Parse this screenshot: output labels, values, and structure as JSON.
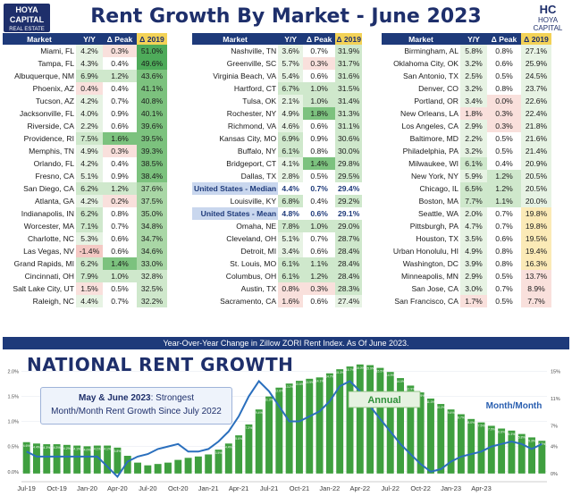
{
  "header": {
    "title": "Rent Growth By Market - June 2023",
    "logo_left_line1": "HOYA CAPITAL",
    "logo_left_line2": "REAL ESTATE",
    "logo_right_line1": "HC",
    "logo_right_line2": "HOYA CAPITAL"
  },
  "table_headers": [
    "Market",
    "Y/Y",
    "Δ Peak",
    "Δ 2019"
  ],
  "tables": [
    [
      [
        "Miami, FL",
        "4.2%",
        "0.3%",
        "51.0%"
      ],
      [
        "Tampa, FL",
        "4.3%",
        "0.4%",
        "49.6%"
      ],
      [
        "Albuquerque, NM",
        "6.9%",
        "1.2%",
        "43.6%"
      ],
      [
        "Phoenix, AZ",
        "0.4%",
        "0.4%",
        "41.1%"
      ],
      [
        "Tucson, AZ",
        "4.2%",
        "0.7%",
        "40.8%"
      ],
      [
        "Jacksonville, FL",
        "4.0%",
        "0.9%",
        "40.1%"
      ],
      [
        "Riverside, CA",
        "2.2%",
        "0.6%",
        "39.6%"
      ],
      [
        "Providence, RI",
        "7.5%",
        "1.6%",
        "39.5%"
      ],
      [
        "Memphis, TN",
        "4.9%",
        "0.3%",
        "39.3%"
      ],
      [
        "Orlando, FL",
        "4.2%",
        "0.4%",
        "38.5%"
      ],
      [
        "Fresno, CA",
        "5.1%",
        "0.9%",
        "38.4%"
      ],
      [
        "San Diego, CA",
        "6.2%",
        "1.2%",
        "37.6%"
      ],
      [
        "Atlanta, GA",
        "4.2%",
        "0.2%",
        "37.5%"
      ],
      [
        "Indianapolis, IN",
        "6.2%",
        "0.8%",
        "35.0%"
      ],
      [
        "Worcester, MA",
        "7.1%",
        "0.7%",
        "34.8%"
      ],
      [
        "Charlotte, NC",
        "5.3%",
        "0.6%",
        "34.7%"
      ],
      [
        "Las Vegas, NV",
        "-1.4%",
        "0.6%",
        "34.6%"
      ],
      [
        "Grand Rapids, MI",
        "6.2%",
        "1.4%",
        "33.0%"
      ],
      [
        "Cincinnati, OH",
        "7.9%",
        "1.0%",
        "32.8%"
      ],
      [
        "Salt Lake City, UT",
        "1.5%",
        "0.5%",
        "32.5%"
      ],
      [
        "Raleigh, NC",
        "4.4%",
        "0.7%",
        "32.2%"
      ]
    ],
    [
      [
        "Nashville, TN",
        "3.6%",
        "0.7%",
        "31.9%"
      ],
      [
        "Greenville, SC",
        "5.7%",
        "0.3%",
        "31.7%"
      ],
      [
        "Virginia Beach, VA",
        "5.4%",
        "0.6%",
        "31.6%"
      ],
      [
        "Hartford, CT",
        "6.7%",
        "1.0%",
        "31.5%"
      ],
      [
        "Tulsa, OK",
        "2.1%",
        "1.0%",
        "31.4%"
      ],
      [
        "Rochester, NY",
        "4.9%",
        "1.8%",
        "31.3%"
      ],
      [
        "Richmond, VA",
        "4.6%",
        "0.6%",
        "31.1%"
      ],
      [
        "Kansas City, MO",
        "6.9%",
        "0.9%",
        "30.6%"
      ],
      [
        "Buffalo, NY",
        "6.1%",
        "0.8%",
        "30.0%"
      ],
      [
        "Bridgeport, CT",
        "4.1%",
        "1.4%",
        "29.8%"
      ],
      [
        "Dallas, TX",
        "2.8%",
        "0.5%",
        "29.5%"
      ],
      [
        "United States - Median",
        "4.4%",
        "0.7%",
        "29.4%"
      ],
      [
        "Louisville, KY",
        "6.8%",
        "0.4%",
        "29.2%"
      ],
      [
        "United States - Mean",
        "4.8%",
        "0.6%",
        "29.1%"
      ],
      [
        "Omaha, NE",
        "7.8%",
        "1.0%",
        "29.0%"
      ],
      [
        "Cleveland, OH",
        "5.1%",
        "0.7%",
        "28.7%"
      ],
      [
        "Detroit, MI",
        "3.4%",
        "0.6%",
        "28.4%"
      ],
      [
        "St. Louis, MO",
        "6.1%",
        "1.1%",
        "28.4%"
      ],
      [
        "Columbus, OH",
        "6.1%",
        "1.2%",
        "28.4%"
      ],
      [
        "Austin, TX",
        "0.8%",
        "0.3%",
        "28.3%"
      ],
      [
        "Sacramento, CA",
        "1.6%",
        "0.6%",
        "27.4%"
      ]
    ],
    [
      [
        "Birmingham, AL",
        "5.8%",
        "0.8%",
        "27.1%"
      ],
      [
        "Oklahoma City, OK",
        "3.2%",
        "0.6%",
        "25.9%"
      ],
      [
        "San Antonio, TX",
        "2.5%",
        "0.5%",
        "24.5%"
      ],
      [
        "Denver, CO",
        "3.2%",
        "0.8%",
        "23.7%"
      ],
      [
        "Portland, OR",
        "3.4%",
        "0.0%",
        "22.6%"
      ],
      [
        "New Orleans, LA",
        "1.8%",
        "0.3%",
        "22.4%"
      ],
      [
        "Los Angeles, CA",
        "2.9%",
        "0.3%",
        "21.8%"
      ],
      [
        "Baltimore, MD",
        "2.2%",
        "0.5%",
        "21.6%"
      ],
      [
        "Philadelphia, PA",
        "3.2%",
        "0.5%",
        "21.4%"
      ],
      [
        "Milwaukee, WI",
        "6.1%",
        "0.4%",
        "20.9%"
      ],
      [
        "New York, NY",
        "5.9%",
        "1.2%",
        "20.5%"
      ],
      [
        "Chicago, IL",
        "6.5%",
        "1.2%",
        "20.5%"
      ],
      [
        "Boston, MA",
        "7.7%",
        "1.1%",
        "20.0%"
      ],
      [
        "Seattle, WA",
        "2.0%",
        "0.7%",
        "19.8%"
      ],
      [
        "Pittsburgh, PA",
        "4.7%",
        "0.7%",
        "19.8%"
      ],
      [
        "Houston, TX",
        "3.5%",
        "0.6%",
        "19.5%"
      ],
      [
        "Urban Honolulu, HI",
        "4.9%",
        "0.8%",
        "19.4%"
      ],
      [
        "Washington, DC",
        "3.9%",
        "0.8%",
        "16.3%"
      ],
      [
        "Minneapolis, MN",
        "2.9%",
        "0.5%",
        "13.7%"
      ],
      [
        "San Jose, CA",
        "3.0%",
        "0.7%",
        "8.9%"
      ],
      [
        "San Francisco, CA",
        "1.7%",
        "0.5%",
        "7.7%"
      ]
    ]
  ],
  "caption": "Year-Over-Year Change in Zillow ZORI Rent Index. As Of June 2023.",
  "chart": {
    "title": "NATIONAL RENT GROWTH",
    "callout_bold": "May & June 2023",
    "callout_rest": ": Strongest",
    "callout_line2": "Month/Month Rent Growth Since July 2022",
    "annual_label": "Annual",
    "monthly_label": "Month/Month"
  },
  "chart_data": {
    "type": "bar",
    "x_tick_labels": [
      "Jul-19",
      "Oct-19",
      "Jan-20",
      "Apr-20",
      "Jul-20",
      "Oct-20",
      "Jan-21",
      "Apr-21",
      "Jul-21",
      "Oct-21",
      "Jan-22",
      "Apr-22",
      "Jul-22",
      "Oct-22",
      "Jan-23",
      "Apr-23"
    ],
    "left_axis_ticks": [
      "0.0%",
      "0.5%",
      "1.0%",
      "1.5%",
      "2.0%"
    ],
    "left_ylim": [
      -0.2,
      2.2
    ],
    "right_axis_ticks": [
      "0%",
      "4%",
      "7%",
      "11%",
      "15%"
    ],
    "right_ylim": [
      -1.2,
      16.5
    ],
    "series": [
      {
        "name": "Annual",
        "axis": "right",
        "style": "bar",
        "values": [
          4.6,
          4.4,
          4.3,
          4.3,
          4.2,
          4.1,
          4.0,
          4.1,
          4.1,
          3.8,
          2.6,
          1.6,
          1.2,
          1.4,
          1.6,
          2.0,
          2.3,
          2.5,
          2.8,
          3.5,
          4.4,
          5.6,
          7.2,
          9.4,
          11.3,
          12.6,
          13.2,
          13.6,
          13.9,
          14.1,
          14.7,
          15.3,
          15.7,
          16.0,
          15.9,
          15.5,
          14.9,
          14.0,
          12.9,
          11.9,
          11.0,
          10.2,
          9.4,
          8.7,
          8.0,
          7.5,
          7.0,
          6.6,
          6.3,
          5.8,
          5.3,
          4.8
        ]
      },
      {
        "name": "Month/Month",
        "axis": "left",
        "style": "line",
        "values": [
          0.4,
          0.3,
          0.3,
          0.3,
          0.3,
          0.3,
          0.3,
          0.3,
          0.1,
          -0.1,
          0.2,
          0.3,
          0.35,
          0.45,
          0.5,
          0.55,
          0.4,
          0.4,
          0.45,
          0.6,
          0.8,
          1.1,
          1.5,
          1.8,
          1.6,
          1.3,
          1.0,
          1.0,
          1.1,
          1.2,
          1.4,
          1.7,
          1.8,
          1.6,
          1.3,
          1.05,
          0.8,
          0.55,
          0.35,
          0.15,
          0.0,
          0.05,
          0.2,
          0.3,
          0.35,
          0.4,
          0.5,
          0.55,
          0.6,
          0.55,
          0.45,
          0.55
        ]
      }
    ]
  }
}
